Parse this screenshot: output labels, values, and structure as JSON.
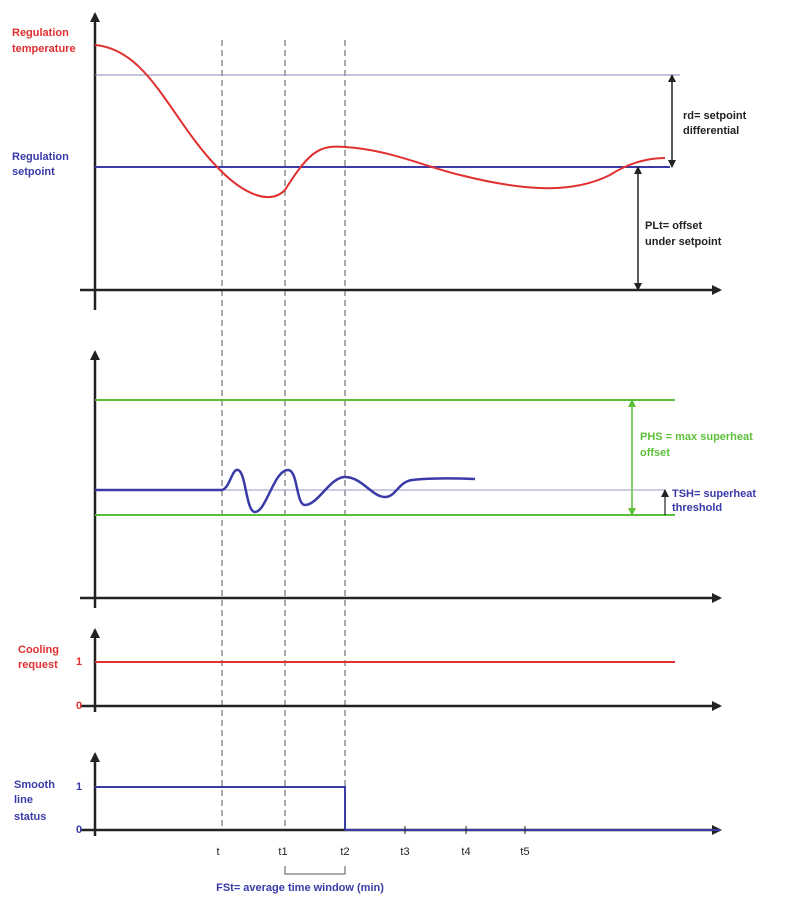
{
  "temperature_panel": {
    "temperature_label": [
      "Regulation",
      "temperature"
    ],
    "setpoint_label": [
      "Regulation",
      "setpoint"
    ],
    "rd_label": [
      "rd= setpoint",
      "differential"
    ],
    "plt_label": [
      "PLt= offset",
      "under setpoint"
    ]
  },
  "superheat_panel": {
    "phs_label": [
      "PHS = max superheat",
      "offset"
    ],
    "tsh_label": [
      "TSH= superheat",
      "threshold"
    ]
  },
  "cooling_panel": {
    "label": [
      "Cooling",
      "request"
    ],
    "levels": [
      "1",
      "0"
    ]
  },
  "smooth_line_panel": {
    "label": [
      "Smooth",
      "line",
      "status"
    ],
    "levels": [
      "1",
      "0"
    ]
  },
  "time_axis": {
    "labels": [
      "t",
      "t1",
      "t2",
      "t3",
      "t4",
      "t5"
    ]
  },
  "fst_label": "FSt= average time window (min)"
}
